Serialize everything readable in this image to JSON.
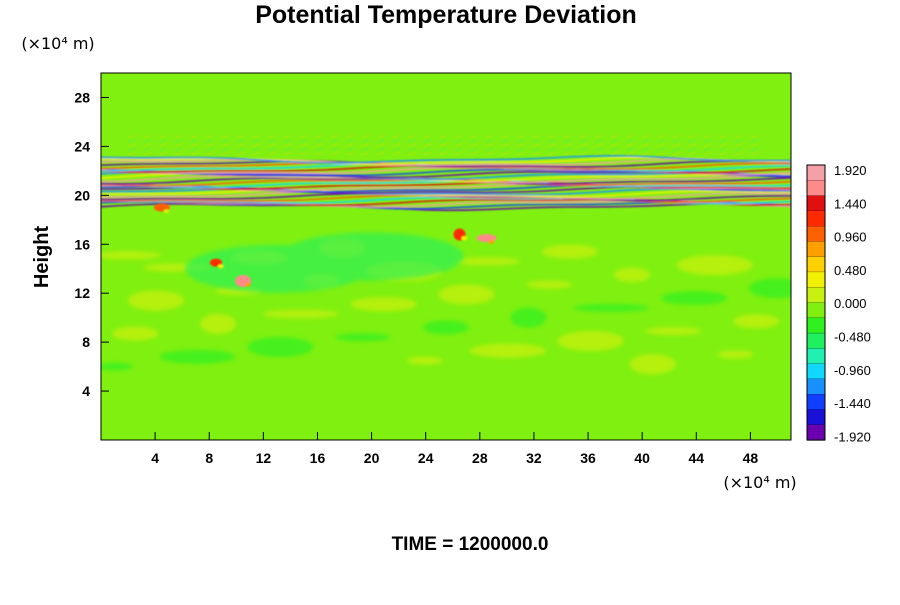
{
  "chart_data": {
    "type": "heatmap",
    "title": "Potential Temperature Deviation",
    "xlabel": "",
    "ylabel": "Height",
    "x_unit": "(×10⁴ m)",
    "y_unit": "(×10⁴ m)",
    "xlim": [
      0,
      51
    ],
    "ylim": [
      0,
      30
    ],
    "x_ticks": [
      4,
      8,
      12,
      16,
      20,
      24,
      28,
      32,
      36,
      40,
      44,
      48
    ],
    "y_ticks": [
      4,
      8,
      12,
      16,
      20,
      24,
      28
    ],
    "x_tick_labels": [
      "4",
      "8",
      "12",
      "16",
      "20",
      "24",
      "28",
      "32",
      "36",
      "40",
      "44",
      "48"
    ],
    "y_tick_labels": [
      "4",
      "8",
      "12",
      "16",
      "20",
      "24",
      "28"
    ],
    "colorbar": {
      "min": -1.92,
      "max": 1.92,
      "labels": [
        "1.920",
        "1.440",
        "0.960",
        "0.480",
        "0.000",
        "-0.480",
        "-0.960",
        "-1.440",
        "-1.920"
      ],
      "colors": [
        "#6a00b0",
        "#1a10d8",
        "#1040ff",
        "#1890ff",
        "#10d8ff",
        "#20f0b0",
        "#20f060",
        "#30f020",
        "#80f010",
        "#c8f010",
        "#f0f000",
        "#ffd000",
        "#ffa000",
        "#ff6000",
        "#ff2a00",
        "#e01010",
        "#ff8a8a",
        "#f4a0a8"
      ]
    },
    "features": {
      "background_value": -0.15,
      "inversion_band": {
        "y_range": [
          19,
          23
        ],
        "pattern": "alternating layers from -1.920 to 1.920"
      },
      "warm_spots": [
        {
          "x": 8.5,
          "y": 14.5,
          "value": 1.2
        },
        {
          "x": 10.5,
          "y": 13.0,
          "value": 1.5
        },
        {
          "x": 28.5,
          "y": 16.5,
          "value": 1.6
        },
        {
          "x": 26.5,
          "y": 16.8,
          "value": 1.2
        },
        {
          "x": 4.5,
          "y": 19.0,
          "value": 1.0
        }
      ],
      "cool_patches": [
        {
          "x": 13,
          "y": 14,
          "value": -0.5
        },
        {
          "x": 20,
          "y": 15,
          "value": -0.6
        }
      ]
    },
    "grid": false,
    "legend": "colorbar-right"
  },
  "footer": {
    "time_label": "TIME = 1200000.0"
  }
}
